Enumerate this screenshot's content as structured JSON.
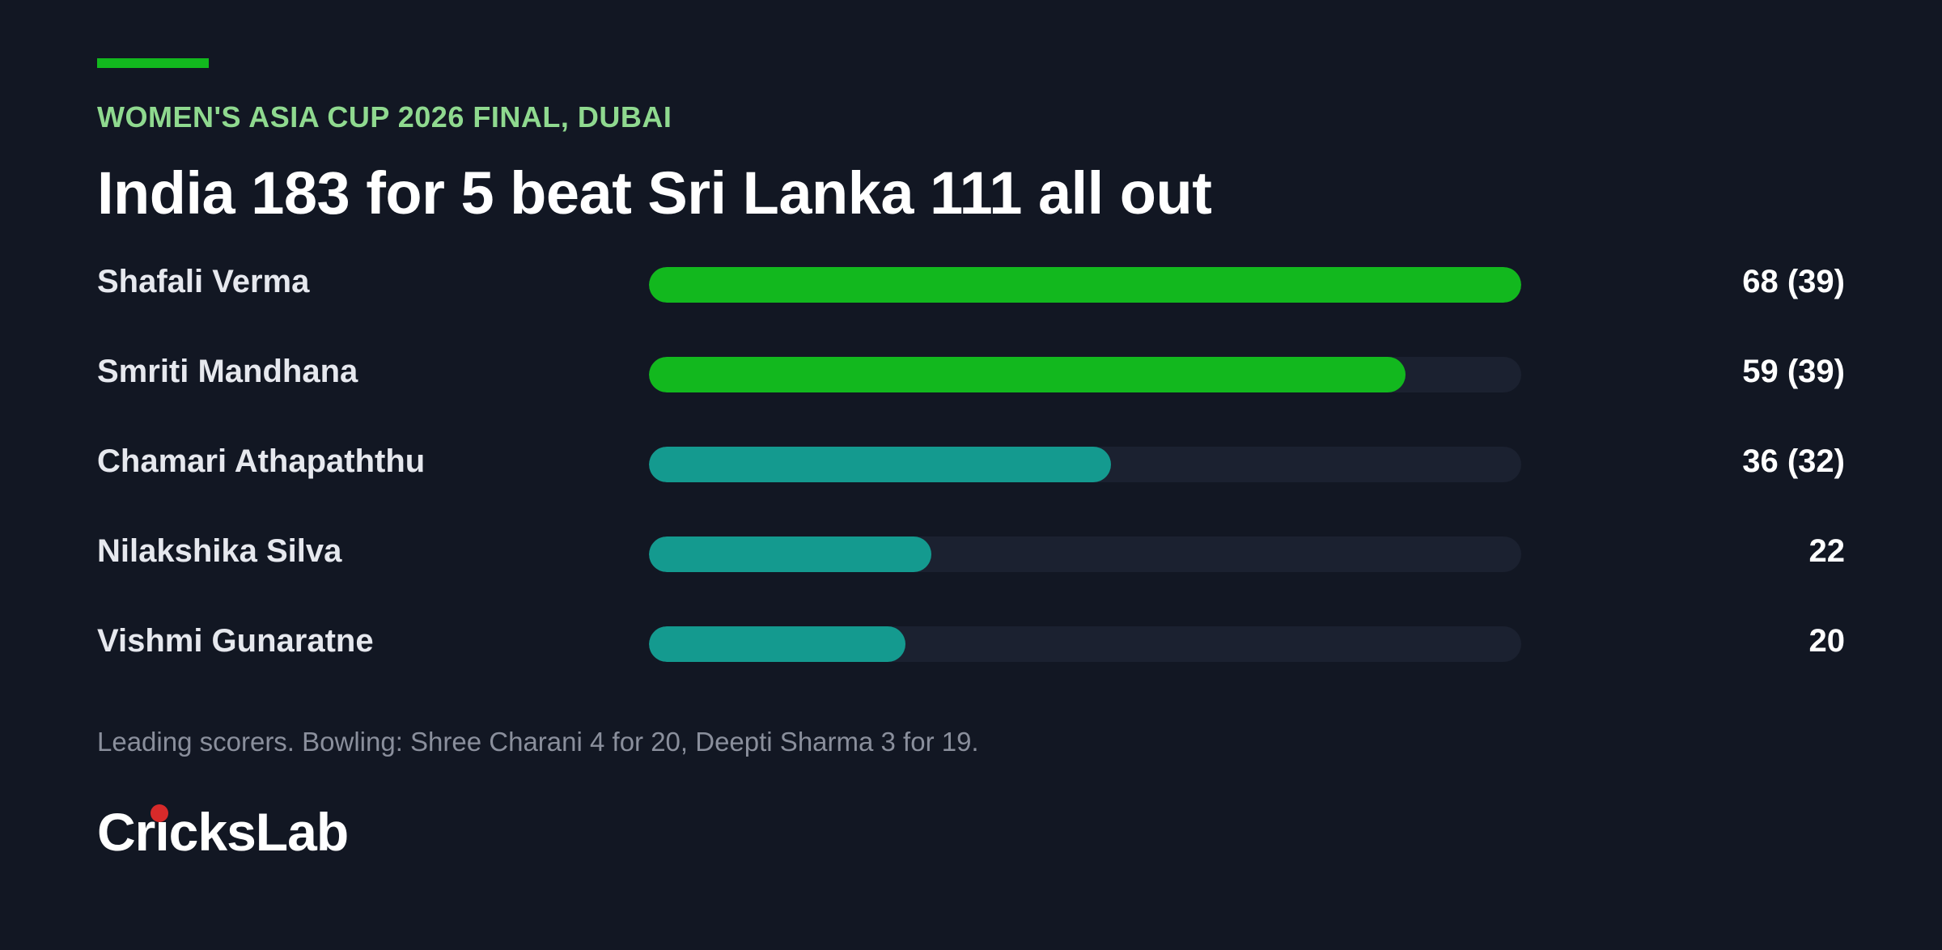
{
  "header": {
    "kicker": "WOMEN'S ASIA CUP 2026 FINAL, DUBAI",
    "title": "India 183 for 5 beat Sri Lanka 111 all out"
  },
  "colors": {
    "india": "#12b81e",
    "sri_lanka": "#149a8f",
    "accent": "#12b81e",
    "track": "#1b2130",
    "background": "#121723"
  },
  "chart_data": {
    "type": "bar",
    "orientation": "horizontal",
    "categories": [
      "Shafali Verma",
      "Smriti Mandhana",
      "Chamari Athapaththu",
      "Nilakshika Silva",
      "Vishmi Gunaratne"
    ],
    "values": [
      68,
      59,
      36,
      22,
      20
    ],
    "labels": [
      "68 (39)",
      "59 (39)",
      "36 (32)",
      "22",
      "20"
    ],
    "teams": [
      "india",
      "india",
      "sri_lanka",
      "sri_lanka",
      "sri_lanka"
    ],
    "xlim": [
      0,
      68
    ],
    "grid": false
  },
  "footnote": "Leading scorers. Bowling: Shree Charani 4 for 20, Deepti Sharma 3 for 19.",
  "brand": {
    "name": "CricksLab",
    "logo_icon": "cricket-ball-icon"
  }
}
